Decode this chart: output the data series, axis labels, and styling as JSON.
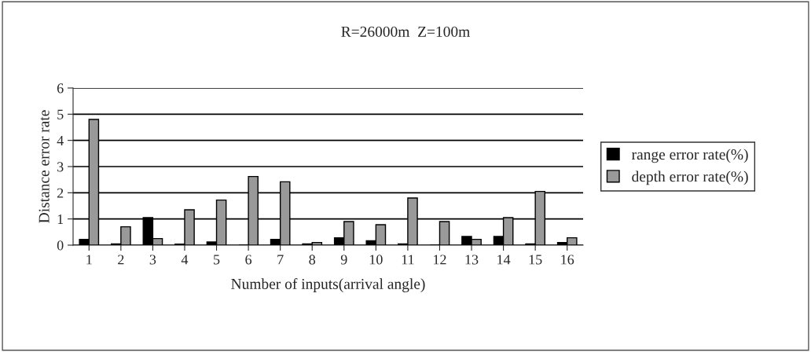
{
  "chart_data": {
    "type": "bar",
    "title": "R=26000m  Z=100m",
    "xlabel": "Number of inputs(arrival angle)",
    "ylabel": "Distance error rate",
    "categories": [
      "1",
      "2",
      "3",
      "4",
      "5",
      "6",
      "7",
      "8",
      "9",
      "10",
      "11",
      "12",
      "13",
      "14",
      "15",
      "16"
    ],
    "series": [
      {
        "name": "range error rate(%)",
        "color": "#000000",
        "values": [
          0.22,
          0.05,
          1.05,
          0.04,
          0.12,
          0.0,
          0.22,
          0.05,
          0.28,
          0.17,
          0.05,
          0.0,
          0.33,
          0.33,
          0.05,
          0.1
        ]
      },
      {
        "name": "depth error rate(%)",
        "color": "#999999",
        "values": [
          4.8,
          0.7,
          0.25,
          1.35,
          1.72,
          2.62,
          2.42,
          0.1,
          0.9,
          0.78,
          1.8,
          0.9,
          0.22,
          1.05,
          2.05,
          0.28
        ]
      }
    ],
    "ylim": [
      0,
      6
    ],
    "yticks": [
      0,
      1,
      2,
      3,
      4,
      5,
      6
    ],
    "grid": "y",
    "legend": "right"
  }
}
